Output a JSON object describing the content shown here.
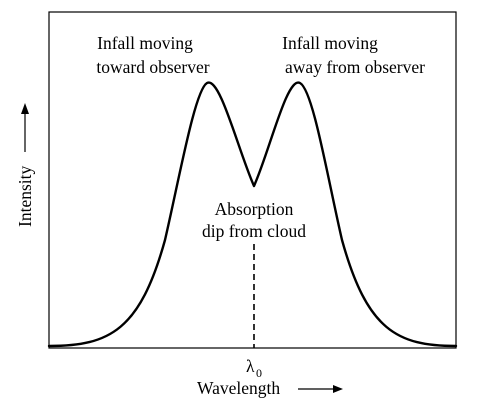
{
  "labels": {
    "left_peak_line1": "Infall moving",
    "left_peak_line2": "toward observer",
    "right_peak_line1": "Infall moving",
    "right_peak_line2": "away from observer",
    "dip_line1": "Absorption",
    "dip_line2": "dip from cloud",
    "x_axis": "Wavelength",
    "y_axis": "Intensity",
    "center_wavelength_symbol": "λ",
    "center_wavelength_subscript": "0"
  },
  "colors": {
    "line": "#000000",
    "background": "#ffffff"
  }
}
